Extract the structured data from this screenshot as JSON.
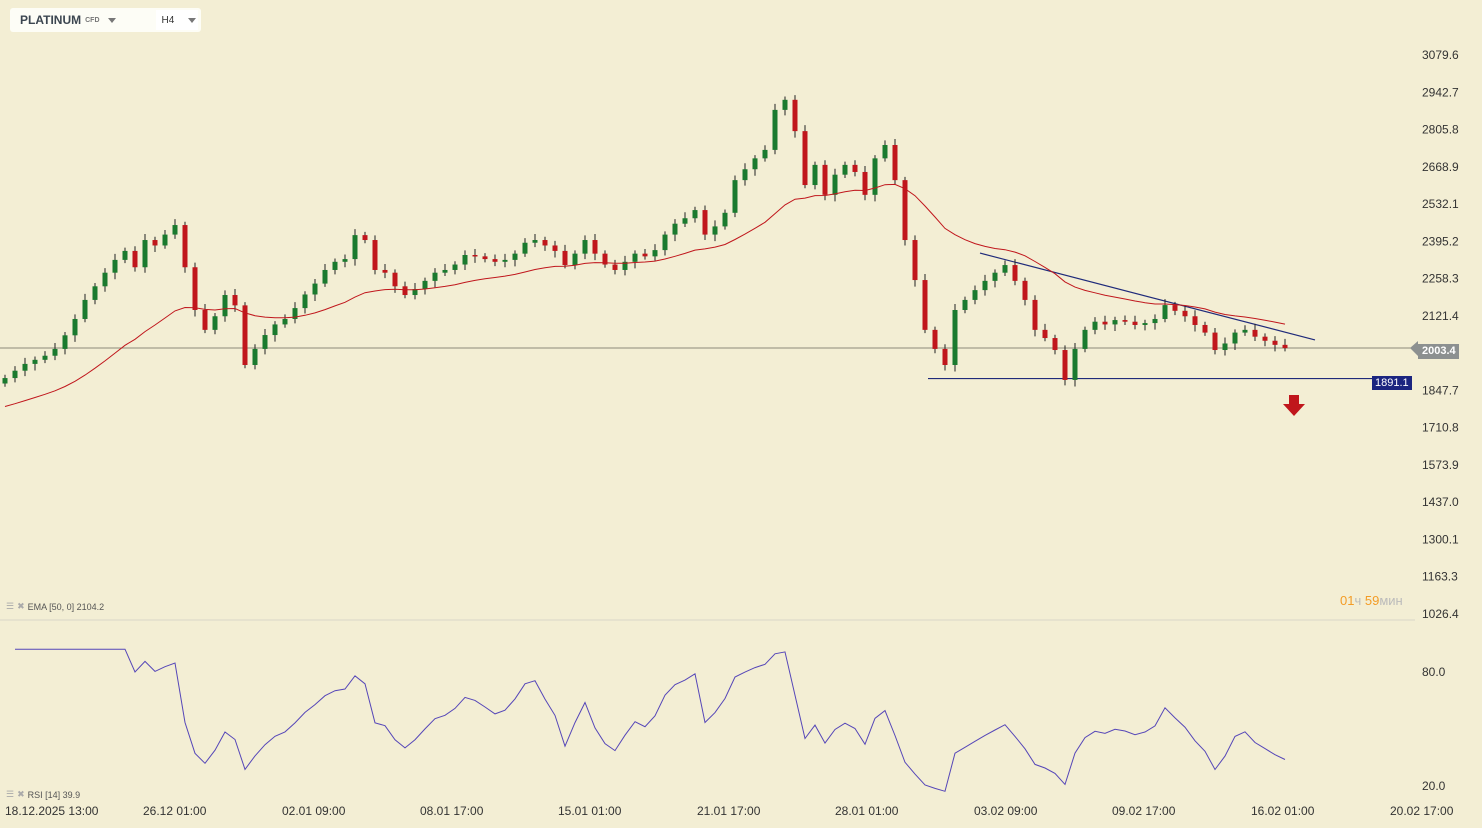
{
  "header": {
    "symbol": "PLATINUM",
    "symbol_type": "CFD",
    "timeframe": "H4"
  },
  "indicators": {
    "ema_label": "EMA [50, 0] 2104.2",
    "rsi_label": "RSI [14] 39.9"
  },
  "timer": {
    "hours": "01",
    "hours_unit": "ч",
    "minutes": "59",
    "minutes_unit": "мин"
  },
  "current_price": "2003.4",
  "support_level": "1891.1",
  "colors": {
    "up": "#1a7a2e",
    "down": "#c0161c",
    "ema": "#c0161c",
    "rsi": "#5546b8",
    "trend": "#1f2a7a",
    "bg": "#f3eed4"
  },
  "chart_data": {
    "type": "candlestick",
    "title": "PLATINUM CFD H4",
    "ylim": [
      1026.4,
      3079.6
    ],
    "y_ticks": [
      "3079.6",
      "2942.7",
      "2805.8",
      "2668.9",
      "2532.1",
      "2395.2",
      "2258.3",
      "2121.4",
      "1847.7",
      "1710.8",
      "1573.9",
      "1437.0",
      "1300.1",
      "1163.3",
      "1026.4"
    ],
    "x_ticks": [
      "18.12.2025  13:00",
      "26.12  01:00",
      "02.01  09:00",
      "08.01  17:00",
      "15.01  01:00",
      "21.01  17:00",
      "28.01  01:00",
      "03.02  09:00",
      "09.02  17:00",
      "16.02  01:00",
      "20.02  17:00"
    ],
    "close": [
      1893,
      1920,
      1945,
      1960,
      1975,
      2000,
      2050,
      2110,
      2180,
      2230,
      2280,
      2327,
      2360,
      2300,
      2400,
      2380,
      2420,
      2455,
      2300,
      2143,
      2070,
      2120,
      2198,
      2160,
      1941,
      2000,
      2051,
      2090,
      2110,
      2150,
      2200,
      2240,
      2290,
      2320,
      2330,
      2418,
      2400,
      2290,
      2280,
      2230,
      2198,
      2220,
      2250,
      2280,
      2290,
      2310,
      2345,
      2340,
      2330,
      2320,
      2327,
      2350,
      2390,
      2400,
      2380,
      2360,
      2308,
      2350,
      2400,
      2350,
      2310,
      2290,
      2320,
      2350,
      2340,
      2363,
      2420,
      2460,
      2480,
      2510,
      2420,
      2450,
      2500,
      2620,
      2660,
      2700,
      2731,
      2878,
      2915,
      2800,
      2602,
      2676,
      2566,
      2640,
      2676,
      2650,
      2566,
      2700,
      2749,
      2620,
      2400,
      2253,
      2070,
      2000,
      1941,
      2143,
      2180,
      2216,
      2250,
      2280,
      2308,
      2250,
      2180,
      2070,
      2040,
      1996,
      1886,
      2000,
      2070,
      2100,
      2090,
      2106,
      2100,
      2088,
      2095,
      2110,
      2161,
      2140,
      2120,
      2088,
      2060,
      1996,
      2020,
      2060,
      2070,
      2045,
      2030,
      2015,
      2003
    ],
    "trendline_descending": [
      2352,
      2033
    ],
    "rsi_ticks": [
      "80.0",
      "20.0"
    ]
  }
}
